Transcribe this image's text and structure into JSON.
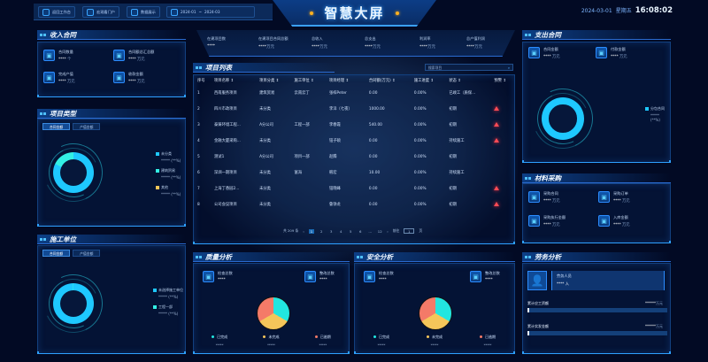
{
  "header": {
    "nav": [
      {
        "label": "返回工作台",
        "icon": "home-icon"
      },
      {
        "label": "宏观看门户",
        "icon": "globe-icon"
      },
      {
        "label": "数据展示",
        "icon": "monitor-icon"
      }
    ],
    "date_range": {
      "start": "2024-01",
      "sep": "~",
      "end": "2024-03",
      "icon": "calendar-icon"
    },
    "title": "智慧大屏",
    "date": "2024-03-01",
    "weekday": "星期五",
    "time": "16:08:02"
  },
  "stats": [
    {
      "label": "在建项目数",
      "value": "****",
      "unit": ""
    },
    {
      "label": "在建项目合同总额",
      "value": "****",
      "unit": "万元"
    },
    {
      "label": "总收入",
      "value": "****",
      "unit": "万元"
    },
    {
      "label": "总支出",
      "value": "****",
      "unit": "万元"
    },
    {
      "label": "利润率",
      "value": "****",
      "unit": "万元"
    },
    {
      "label": "总产值利润",
      "value": "****",
      "unit": "万元"
    }
  ],
  "income": {
    "title": "收入合同",
    "kpis": [
      {
        "label": "合同数量",
        "value": "****",
        "unit": "个"
      },
      {
        "label": "合同额总汇总额",
        "value": "****",
        "unit": "万元"
      },
      {
        "label": "完成产值",
        "value": "****",
        "unit": "万元"
      },
      {
        "label": "收款金额",
        "value": "****",
        "unit": "万元"
      }
    ]
  },
  "project_type": {
    "title": "项目类型",
    "tabs": [
      "合同金额",
      "产值金额"
    ],
    "active_tab": 0,
    "legend": [
      {
        "name": "未分类",
        "value": "*****",
        "pct": "(**%)",
        "color": "#1ec8ff"
      },
      {
        "name": "建筑贸易",
        "value": "*****",
        "pct": "(**%)",
        "color": "#33f0e4"
      },
      {
        "name": "其他",
        "value": "*****",
        "pct": "(**%)",
        "color": "#f5c65a"
      }
    ],
    "shares": [
      0.82,
      0.18,
      0
    ]
  },
  "construction_unit": {
    "title": "施工单位",
    "tabs": [
      "合同金额",
      "产值金额"
    ],
    "active_tab": 0,
    "legend": [
      {
        "name": "未选择施工单位",
        "value": "*****",
        "pct": "(**%)",
        "color": "#1ec8ff"
      },
      {
        "name": "工程一部",
        "value": "*****",
        "pct": "(**%)",
        "color": "#33f0e4"
      }
    ],
    "shares": [
      0.995,
      0.005
    ]
  },
  "projects": {
    "title": "项目列表",
    "search_placeholder": "搜索项目",
    "columns": [
      "序号",
      "项目名称 ↕",
      "项目分类 ↕",
      "施工单位 ↕",
      "项目经理 ↕",
      "合同额(万元) ↕",
      "施工进度 ↕",
      "状态 ↕",
      "预警 ↕"
    ],
    "rows": [
      {
        "no": "1",
        "name": "西南服务项目",
        "type": "建筑贸易",
        "unit": "云南云丁",
        "manager": "张梓Peter",
        "amount": "0.00",
        "progress": "0.00%",
        "status": "已竣工（质保...",
        "warn": false
      },
      {
        "no": "2",
        "name": "四川市政项目",
        "type": "未分类",
        "unit": "",
        "manager": "李洋（七夜）",
        "amount": "1000.00",
        "progress": "0.00%",
        "status": "初期",
        "warn": true
      },
      {
        "no": "3",
        "name": "泰铸环境工程...",
        "type": "A分公司",
        "unit": "工程一部",
        "manager": "李春霞",
        "amount": "540.00",
        "progress": "0.00%",
        "status": "初期",
        "warn": true
      },
      {
        "no": "4",
        "name": "金融大厦采购...",
        "type": "未分类",
        "unit": "",
        "manager": "钮子硕",
        "amount": "0.00",
        "progress": "0.00%",
        "status": "持续施工",
        "warn": true
      },
      {
        "no": "5",
        "name": "测试1",
        "type": "A分公司",
        "unit": "项目一部",
        "manager": "赵腾",
        "amount": "0.00",
        "progress": "0.00%",
        "status": "初期",
        "warn": false
      },
      {
        "no": "6",
        "name": "深圳一期项目",
        "type": "未分类",
        "unit": "富海",
        "manager": "韩宏",
        "amount": "10.00",
        "progress": "0.00%",
        "status": "持续施工",
        "warn": false
      },
      {
        "no": "7",
        "name": "上海丁香园2...",
        "type": "未分类",
        "unit": "",
        "manager": "钮晓峰",
        "amount": "0.00",
        "progress": "0.00%",
        "status": "初期",
        "warn": true
      },
      {
        "no": "8",
        "name": "公司会议项目",
        "type": "未分类",
        "unit": "",
        "manager": "鲁铮龙",
        "amount": "0.00",
        "progress": "0.00%",
        "status": "初期",
        "warn": true
      }
    ],
    "pagination": {
      "total": "共 209 条",
      "prev": "‹",
      "pages": [
        "1",
        "2",
        "3",
        "4",
        "5",
        "6",
        "…",
        "12"
      ],
      "current": "1",
      "next": "›",
      "goto_label": "前往",
      "goto_value": "1",
      "page_suffix": "页"
    }
  },
  "quality": {
    "title": "质量分析",
    "kpis": [
      {
        "label": "检查总数",
        "value": "****"
      },
      {
        "label": "整改总数",
        "value": "****"
      }
    ],
    "legend": [
      {
        "name": "已完成",
        "value": "*****",
        "color": "#22e6e0"
      },
      {
        "name": "未完成",
        "value": "*****",
        "color": "#f5c65a"
      },
      {
        "name": "已逾期",
        "value": "*****",
        "color": "#f47a68"
      }
    ],
    "shares": [
      0.333,
      0.333,
      0.334
    ]
  },
  "safety": {
    "title": "安全分析",
    "kpis": [
      {
        "label": "检查总数",
        "value": "****"
      },
      {
        "label": "整改总数",
        "value": "****"
      }
    ],
    "legend": [
      {
        "name": "已完成",
        "value": "*****",
        "color": "#22e6e0"
      },
      {
        "name": "未完成",
        "value": "*****",
        "color": "#f5c65a"
      },
      {
        "name": "已逾期",
        "value": "*****",
        "color": "#f47a68"
      }
    ],
    "shares": [
      0.333,
      0.333,
      0.334
    ]
  },
  "expense": {
    "title": "支出合同",
    "kpis": [
      {
        "label": "合同金额",
        "value": "****",
        "unit": "万元"
      },
      {
        "label": "付款金额",
        "value": "****",
        "unit": "万元"
      }
    ],
    "legend": [
      {
        "name": "分包合同",
        "value": "*****",
        "pct": "(**%)",
        "color": "#1ec8ff"
      }
    ]
  },
  "materials": {
    "title": "材料采购",
    "kpis": [
      {
        "label": "采购合同",
        "value": "****",
        "unit": "万元"
      },
      {
        "label": "采购订单",
        "value": "****",
        "unit": "万元"
      },
      {
        "label": "采购执行金额",
        "value": "****",
        "unit": "万元"
      },
      {
        "label": "入库金额",
        "value": "****",
        "unit": "万元"
      }
    ]
  },
  "labor": {
    "title": "劳务分析",
    "people_label": "劳务人员",
    "people_value": "****",
    "people_unit": "人",
    "bars": [
      {
        "label": "累计应工资额",
        "value": "******",
        "unit": "万元",
        "fill": 0
      },
      {
        "label": "累计实发金额",
        "value": "******",
        "unit": "万元",
        "fill": 0
      }
    ]
  }
}
